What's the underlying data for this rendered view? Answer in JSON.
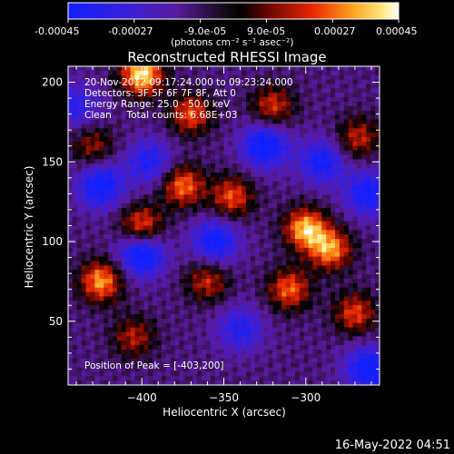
{
  "colorbar": {
    "tick_labels": [
      "-0.00045",
      "-0.00027",
      "-9.0e-05",
      "9.0e-05",
      "0.00027",
      "0.00045"
    ],
    "unit_label": "(photons cm⁻² s⁻¹ asec⁻²)",
    "range": [
      -0.00045,
      0.00045
    ]
  },
  "chart_data": {
    "type": "heatmap",
    "title": "Reconstructed RHESSI Image",
    "xlabel": "Heliocentric X (arcsec)",
    "ylabel": "Heliocentric Y (arcsec)",
    "xlim": [
      -445,
      -255
    ],
    "ylim": [
      10,
      210
    ],
    "x_ticks": [
      -400,
      -350,
      -300
    ],
    "x_tick_labels": [
      "−400",
      "−350",
      "−300"
    ],
    "y_ticks": [
      50,
      100,
      150,
      200
    ],
    "y_tick_labels": [
      "50",
      "100",
      "150",
      "200"
    ],
    "colormap": "blue-black-red-yellow-white",
    "image_grid": {
      "nx": 70,
      "ny": 72
    },
    "hot_regions": [
      {
        "x": -400,
        "y": 110,
        "value": 0.0003
      },
      {
        "x": -375,
        "y": 135,
        "value": 0.00032
      },
      {
        "x": -345,
        "y": 128,
        "value": 0.00028
      },
      {
        "x": -300,
        "y": 108,
        "value": 0.0004
      },
      {
        "x": -285,
        "y": 95,
        "value": 0.00035
      },
      {
        "x": -425,
        "y": 75,
        "value": 0.00036
      },
      {
        "x": -400,
        "y": 205,
        "value": 0.00045
      },
      {
        "x": -370,
        "y": 180,
        "value": 0.00028
      },
      {
        "x": -320,
        "y": 185,
        "value": 0.00024
      },
      {
        "x": -268,
        "y": 165,
        "value": 0.00022
      },
      {
        "x": -360,
        "y": 75,
        "value": 0.00022
      },
      {
        "x": -310,
        "y": 70,
        "value": 0.0003
      },
      {
        "x": -270,
        "y": 55,
        "value": 0.00026
      },
      {
        "x": -405,
        "y": 40,
        "value": 0.0002
      },
      {
        "x": -430,
        "y": 160,
        "value": 0.00018
      }
    ],
    "cold_regions": [
      {
        "x": -425,
        "y": 135,
        "value": -0.0003
      },
      {
        "x": -400,
        "y": 92,
        "value": -0.00034
      },
      {
        "x": -325,
        "y": 160,
        "value": -0.00032
      },
      {
        "x": -355,
        "y": 100,
        "value": -0.00028
      },
      {
        "x": -290,
        "y": 150,
        "value": -0.00025
      },
      {
        "x": -262,
        "y": 130,
        "value": -0.00027
      },
      {
        "x": -395,
        "y": 150,
        "value": -0.00022
      },
      {
        "x": -340,
        "y": 45,
        "value": -0.0002
      },
      {
        "x": -262,
        "y": 20,
        "value": -0.0003
      },
      {
        "x": -440,
        "y": 185,
        "value": -0.00018
      }
    ]
  },
  "annotations": {
    "line1": "20-Nov-2012 09:17:24.000 to 09:23:24.000",
    "line2": "Detectors: 3F 5F 6F 7F 8F, Att 0",
    "line3": "Energy Range: 25.0 - 50.0 keV",
    "line4": "Clean     Total counts: 6.68E+03",
    "peak": "Position of Peak = [-403,200]"
  },
  "timestamp": "16-May-2022 04:51"
}
